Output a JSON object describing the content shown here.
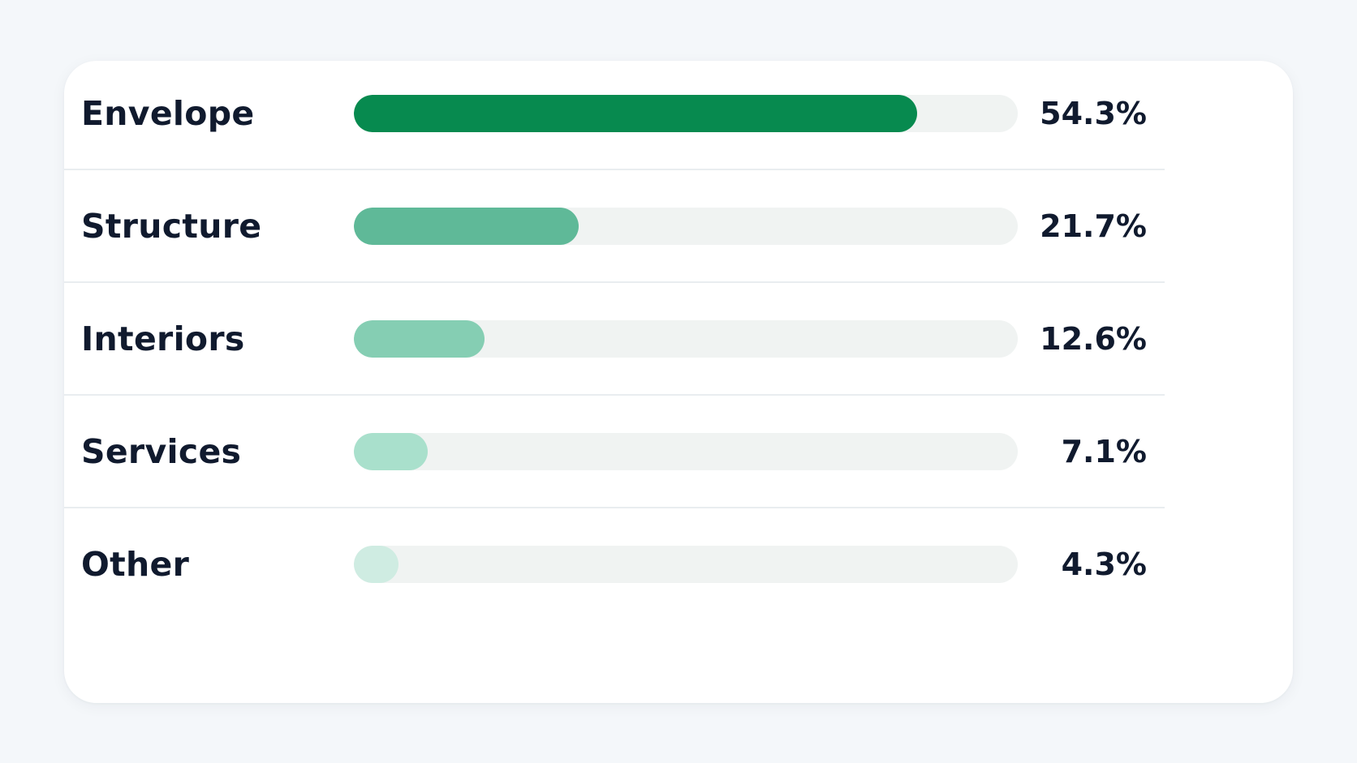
{
  "chart_data": {
    "type": "bar",
    "orientation": "horizontal",
    "categories": [
      "Envelope",
      "Structure",
      "Interiors",
      "Services",
      "Other"
    ],
    "values": [
      54.3,
      21.7,
      12.6,
      7.1,
      4.3
    ],
    "value_labels": [
      "54.3%",
      "21.7%",
      "12.6%",
      "7.1%",
      "4.3%"
    ],
    "unit": "%",
    "colors": [
      "#078a4f",
      "#5fb998",
      "#85ceb3",
      "#a9e0cc",
      "#cfece2"
    ],
    "track_color": "#f0f3f2",
    "xlim": [
      0,
      64
    ],
    "grid": false,
    "legend": "none"
  }
}
